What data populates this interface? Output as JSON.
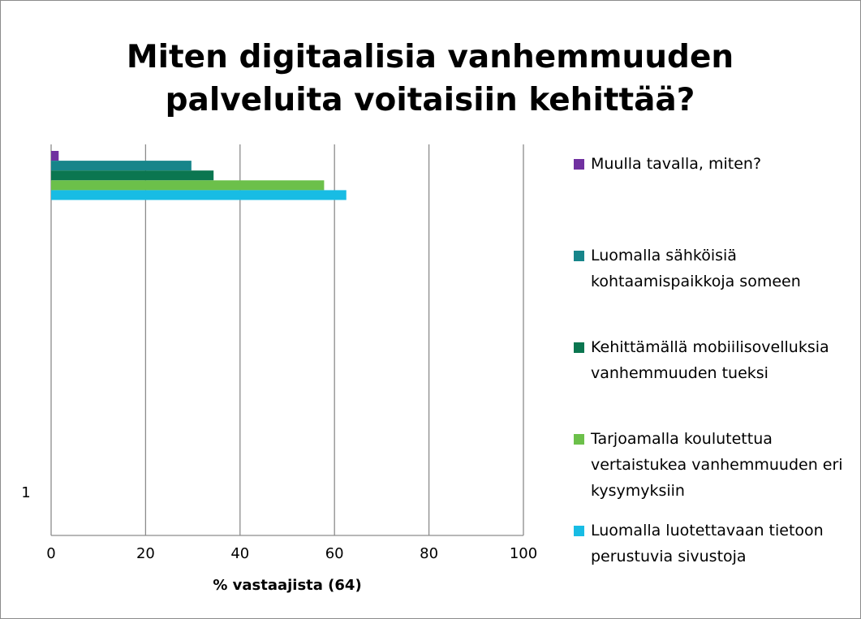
{
  "chart_data": {
    "type": "barh",
    "title": "Miten digitaalisia vanhemmuuden palveluita voitaisiin kehittää?",
    "x_label": "% vastaajista (64)",
    "categories": [
      "1"
    ],
    "series": [
      {
        "name": "Muulla tavalla, miten?",
        "color": "#7030a0",
        "values": [
          1.6
        ]
      },
      {
        "name": "Luomalla sähköisiä kohtaamispaikkoja someen",
        "color": "#17858a",
        "values": [
          29.7
        ]
      },
      {
        "name": "Kehittämällä mobiilisovelluksia vanhemmuuden tueksi",
        "color": "#0b7650",
        "values": [
          34.4
        ]
      },
      {
        "name": "Tarjoamalla koulutettua vertaistukea vanhemmuuden eri kysymyksiin",
        "color": "#6cc04a",
        "values": [
          57.8
        ]
      },
      {
        "name": "Luomalla luotettavaan tietoon perustuvia sivustoja",
        "color": "#18bce4",
        "values": [
          62.5
        ]
      }
    ],
    "xlim": [
      0,
      100
    ],
    "xticks": [
      0,
      20,
      40,
      60,
      80,
      100
    ],
    "grid": true,
    "legend": "right"
  }
}
